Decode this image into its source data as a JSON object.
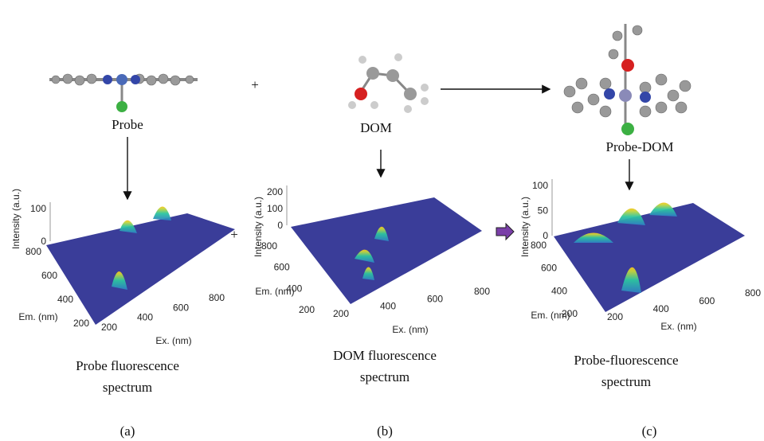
{
  "panels": [
    {
      "molecule_label": "Probe",
      "plot": {
        "z_label": "Intensity (a.u.)",
        "y_label": "Em. (nm)",
        "x_label": "Ex. (nm)",
        "z_ticks": [
          "0",
          "100"
        ],
        "y_ticks": [
          "200",
          "400",
          "600",
          "800"
        ],
        "x_ticks": [
          "200",
          "400",
          "600",
          "800"
        ]
      },
      "caption": [
        "Probe fluorescence",
        "spectrum"
      ],
      "letter": "(a)"
    },
    {
      "molecule_label": "DOM",
      "plot": {
        "z_label": "Intensity (a.u.)",
        "y_label": "Em. (nm)",
        "x_label": "Ex. (nm)",
        "z_ticks": [
          "0",
          "100",
          "200"
        ],
        "y_ticks": [
          "200",
          "400",
          "600",
          "800"
        ],
        "x_ticks": [
          "200",
          "400",
          "600",
          "800"
        ]
      },
      "caption": [
        "DOM fluorescence",
        "spectrum"
      ],
      "letter": "(b)"
    },
    {
      "molecule_label": "Probe-DOM",
      "plot": {
        "z_label": "Intensity (a.u.)",
        "y_label": "Em. (nm)",
        "x_label": "Ex. (nm)",
        "z_ticks": [
          "0",
          "50",
          "100"
        ],
        "y_ticks": [
          "200",
          "400",
          "600",
          "800"
        ],
        "x_ticks": [
          "200",
          "400",
          "600",
          "800"
        ]
      },
      "caption": [
        "Probe-fluorescence",
        "spectrum"
      ],
      "letter": "(c)"
    }
  ],
  "operators": [
    "+",
    "+"
  ]
}
